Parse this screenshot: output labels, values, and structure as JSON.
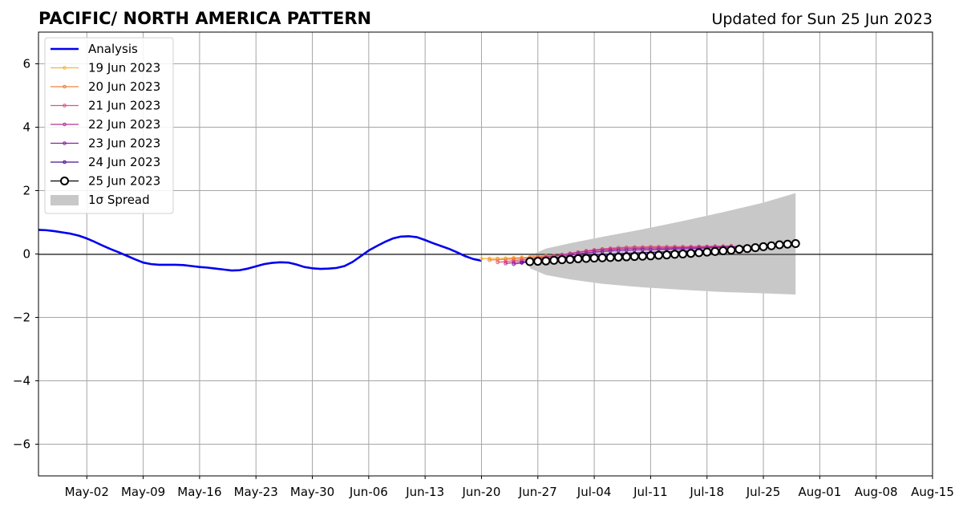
{
  "chart_data": {
    "type": "line",
    "title": "PACIFIC/ NORTH AMERICA PATTERN",
    "subtitle": "Updated for Sun 25 Jun 2023",
    "xlabel": "",
    "ylabel": "",
    "xlim": [
      "2023-04-26",
      "2023-08-15"
    ],
    "ylim": [
      -7,
      7
    ],
    "x_ticks": [
      "2023-05-02",
      "2023-05-09",
      "2023-05-16",
      "2023-05-23",
      "2023-05-30",
      "2023-06-06",
      "2023-06-13",
      "2023-06-20",
      "2023-06-27",
      "2023-07-04",
      "2023-07-11",
      "2023-07-18",
      "2023-07-25",
      "2023-08-01",
      "2023-08-08",
      "2023-08-15"
    ],
    "x_tick_labels": [
      "May-02",
      "May-09",
      "May-16",
      "May-23",
      "May-30",
      "Jun-06",
      "Jun-13",
      "Jun-20",
      "Jun-27",
      "Jul-04",
      "Jul-11",
      "Jul-18",
      "Jul-25",
      "Aug-01",
      "Aug-08",
      "Aug-15"
    ],
    "y_ticks": [
      -6,
      -4,
      -2,
      0,
      2,
      4,
      6
    ],
    "y_tick_labels": [
      "−6",
      "−4",
      "−2",
      "0",
      "2",
      "4",
      "6"
    ],
    "grid": true,
    "legend_position": "top-left",
    "series": [
      {
        "name": "Analysis",
        "color": "#0000ee",
        "style": "thick-line",
        "points": [
          [
            "2023-04-26",
            0.76
          ],
          [
            "2023-04-27",
            0.75
          ],
          [
            "2023-04-28",
            0.72
          ],
          [
            "2023-04-29",
            0.68
          ],
          [
            "2023-04-30",
            0.64
          ],
          [
            "2023-05-01",
            0.58
          ],
          [
            "2023-05-02",
            0.49
          ],
          [
            "2023-05-03",
            0.38
          ],
          [
            "2023-05-04",
            0.26
          ],
          [
            "2023-05-05",
            0.15
          ],
          [
            "2023-05-06",
            0.05
          ],
          [
            "2023-05-07",
            -0.06
          ],
          [
            "2023-05-08",
            -0.17
          ],
          [
            "2023-05-09",
            -0.27
          ],
          [
            "2023-05-10",
            -0.32
          ],
          [
            "2023-05-11",
            -0.34
          ],
          [
            "2023-05-12",
            -0.34
          ],
          [
            "2023-05-13",
            -0.34
          ],
          [
            "2023-05-14",
            -0.35
          ],
          [
            "2023-05-15",
            -0.38
          ],
          [
            "2023-05-16",
            -0.41
          ],
          [
            "2023-05-17",
            -0.43
          ],
          [
            "2023-05-18",
            -0.46
          ],
          [
            "2023-05-19",
            -0.49
          ],
          [
            "2023-05-20",
            -0.52
          ],
          [
            "2023-05-21",
            -0.51
          ],
          [
            "2023-05-22",
            -0.46
          ],
          [
            "2023-05-23",
            -0.39
          ],
          [
            "2023-05-24",
            -0.32
          ],
          [
            "2023-05-25",
            -0.28
          ],
          [
            "2023-05-26",
            -0.26
          ],
          [
            "2023-05-27",
            -0.27
          ],
          [
            "2023-05-28",
            -0.33
          ],
          [
            "2023-05-29",
            -0.41
          ],
          [
            "2023-05-30",
            -0.45
          ],
          [
            "2023-05-31",
            -0.47
          ],
          [
            "2023-06-01",
            -0.46
          ],
          [
            "2023-06-02",
            -0.44
          ],
          [
            "2023-06-03",
            -0.38
          ],
          [
            "2023-06-04",
            -0.25
          ],
          [
            "2023-06-05",
            -0.07
          ],
          [
            "2023-06-06",
            0.11
          ],
          [
            "2023-06-07",
            0.25
          ],
          [
            "2023-06-08",
            0.38
          ],
          [
            "2023-06-09",
            0.49
          ],
          [
            "2023-06-10",
            0.55
          ],
          [
            "2023-06-11",
            0.56
          ],
          [
            "2023-06-12",
            0.53
          ],
          [
            "2023-06-13",
            0.44
          ],
          [
            "2023-06-14",
            0.34
          ],
          [
            "2023-06-15",
            0.25
          ],
          [
            "2023-06-16",
            0.16
          ],
          [
            "2023-06-17",
            0.05
          ],
          [
            "2023-06-18",
            -0.07
          ],
          [
            "2023-06-19",
            -0.16
          ],
          [
            "2023-06-20",
            -0.21
          ]
        ]
      },
      {
        "name": "19 Jun 2023",
        "color": "#f7b43a",
        "style": "small-markers",
        "points": [
          [
            "2023-06-20",
            -0.15
          ],
          [
            "2023-06-21",
            -0.14
          ],
          [
            "2023-06-22",
            -0.14
          ],
          [
            "2023-06-23",
            -0.13
          ],
          [
            "2023-06-24",
            -0.12
          ],
          [
            "2023-06-25",
            -0.11
          ],
          [
            "2023-06-26",
            -0.1
          ],
          [
            "2023-06-27",
            -0.08
          ],
          [
            "2023-06-28",
            -0.06
          ]
        ]
      },
      {
        "name": "20 Jun 2023",
        "color": "#f0803c",
        "style": "small-markers",
        "points": [
          [
            "2023-06-21",
            -0.19
          ],
          [
            "2023-06-22",
            -0.18
          ],
          [
            "2023-06-23",
            -0.17
          ],
          [
            "2023-06-24",
            -0.15
          ],
          [
            "2023-06-25",
            -0.13
          ],
          [
            "2023-06-26",
            -0.11
          ],
          [
            "2023-06-27",
            -0.09
          ],
          [
            "2023-06-28",
            -0.07
          ],
          [
            "2023-06-29",
            -0.05
          ],
          [
            "2023-06-30",
            -0.03
          ]
        ]
      },
      {
        "name": "21 Jun 2023",
        "color": "#e05577",
        "style": "small-markers",
        "points": [
          [
            "2023-06-22",
            -0.26
          ],
          [
            "2023-06-23",
            -0.24
          ],
          [
            "2023-06-24",
            -0.21
          ],
          [
            "2023-06-25",
            -0.18
          ],
          [
            "2023-06-26",
            -0.15
          ],
          [
            "2023-06-27",
            -0.12
          ],
          [
            "2023-06-28",
            -0.09
          ],
          [
            "2023-06-29",
            -0.06
          ],
          [
            "2023-06-30",
            -0.02
          ],
          [
            "2023-07-01",
            0.02
          ],
          [
            "2023-07-02",
            0.06
          ],
          [
            "2023-07-03",
            0.1
          ],
          [
            "2023-07-04",
            0.13
          ],
          [
            "2023-07-05",
            0.16
          ],
          [
            "2023-07-06",
            0.18
          ],
          [
            "2023-07-07",
            0.2
          ],
          [
            "2023-07-08",
            0.21
          ],
          [
            "2023-07-09",
            0.22
          ],
          [
            "2023-07-10",
            0.22
          ],
          [
            "2023-07-11",
            0.23
          ],
          [
            "2023-07-12",
            0.23
          ],
          [
            "2023-07-13",
            0.23
          ],
          [
            "2023-07-14",
            0.23
          ],
          [
            "2023-07-15",
            0.23
          ],
          [
            "2023-07-16",
            0.23
          ],
          [
            "2023-07-17",
            0.24
          ],
          [
            "2023-07-18",
            0.24
          ],
          [
            "2023-07-19",
            0.25
          ],
          [
            "2023-07-20",
            0.25
          ],
          [
            "2023-07-21",
            0.26
          ]
        ]
      },
      {
        "name": "22 Jun 2023",
        "color": "#b7348d",
        "style": "small-markers",
        "points": [
          [
            "2023-06-23",
            -0.3
          ],
          [
            "2023-06-24",
            -0.27
          ],
          [
            "2023-06-25",
            -0.23
          ],
          [
            "2023-06-26",
            -0.19
          ],
          [
            "2023-06-27",
            -0.15
          ],
          [
            "2023-06-28",
            -0.11
          ],
          [
            "2023-06-29",
            -0.07
          ],
          [
            "2023-06-30",
            -0.03
          ],
          [
            "2023-07-01",
            0.01
          ],
          [
            "2023-07-02",
            0.05
          ],
          [
            "2023-07-03",
            0.08
          ],
          [
            "2023-07-04",
            0.11
          ],
          [
            "2023-07-05",
            0.13
          ],
          [
            "2023-07-06",
            0.15
          ],
          [
            "2023-07-07",
            0.16
          ],
          [
            "2023-07-08",
            0.17
          ],
          [
            "2023-07-09",
            0.18
          ],
          [
            "2023-07-10",
            0.18
          ],
          [
            "2023-07-11",
            0.19
          ],
          [
            "2023-07-12",
            0.19
          ],
          [
            "2023-07-13",
            0.19
          ],
          [
            "2023-07-14",
            0.2
          ],
          [
            "2023-07-15",
            0.2
          ],
          [
            "2023-07-16",
            0.21
          ],
          [
            "2023-07-17",
            0.21
          ],
          [
            "2023-07-18",
            0.22
          ],
          [
            "2023-07-19",
            0.22
          ],
          [
            "2023-07-20",
            0.23
          ],
          [
            "2023-07-21",
            0.23
          ],
          [
            "2023-07-22",
            0.24
          ]
        ]
      },
      {
        "name": "23 Jun 2023",
        "color": "#8b1fa6",
        "style": "small-markers",
        "points": [
          [
            "2023-06-24",
            -0.32
          ],
          [
            "2023-06-25",
            -0.28
          ],
          [
            "2023-06-26",
            -0.24
          ],
          [
            "2023-06-27",
            -0.2
          ],
          [
            "2023-06-28",
            -0.16
          ],
          [
            "2023-06-29",
            -0.12
          ],
          [
            "2023-06-30",
            -0.08
          ],
          [
            "2023-07-01",
            -0.04
          ],
          [
            "2023-07-02",
            0.0
          ],
          [
            "2023-07-03",
            0.03
          ],
          [
            "2023-07-04",
            0.06
          ],
          [
            "2023-07-05",
            0.08
          ],
          [
            "2023-07-06",
            0.1
          ],
          [
            "2023-07-07",
            0.11
          ],
          [
            "2023-07-08",
            0.12
          ],
          [
            "2023-07-09",
            0.13
          ],
          [
            "2023-07-10",
            0.14
          ],
          [
            "2023-07-11",
            0.14
          ],
          [
            "2023-07-12",
            0.15
          ],
          [
            "2023-07-13",
            0.15
          ],
          [
            "2023-07-14",
            0.16
          ],
          [
            "2023-07-15",
            0.16
          ],
          [
            "2023-07-16",
            0.17
          ],
          [
            "2023-07-17",
            0.18
          ],
          [
            "2023-07-18",
            0.19
          ],
          [
            "2023-07-19",
            0.2
          ],
          [
            "2023-07-20",
            0.21
          ],
          [
            "2023-07-21",
            0.22
          ],
          [
            "2023-07-22",
            0.23
          ],
          [
            "2023-07-23",
            0.24
          ]
        ]
      },
      {
        "name": "24 Jun 2023",
        "color": "#4b108f",
        "style": "small-markers",
        "points": [
          [
            "2023-06-25",
            -0.27
          ],
          [
            "2023-06-26",
            -0.24
          ],
          [
            "2023-06-27",
            -0.21
          ],
          [
            "2023-06-28",
            -0.18
          ],
          [
            "2023-06-29",
            -0.15
          ],
          [
            "2023-06-30",
            -0.12
          ],
          [
            "2023-07-01",
            -0.09
          ],
          [
            "2023-07-02",
            -0.07
          ],
          [
            "2023-07-03",
            -0.05
          ],
          [
            "2023-07-04",
            -0.03
          ],
          [
            "2023-07-05",
            -0.01
          ],
          [
            "2023-07-06",
            0.0
          ],
          [
            "2023-07-07",
            0.01
          ],
          [
            "2023-07-08",
            0.02
          ],
          [
            "2023-07-09",
            0.03
          ],
          [
            "2023-07-10",
            0.04
          ],
          [
            "2023-07-11",
            0.05
          ],
          [
            "2023-07-12",
            0.06
          ],
          [
            "2023-07-13",
            0.07
          ],
          [
            "2023-07-14",
            0.08
          ],
          [
            "2023-07-15",
            0.09
          ],
          [
            "2023-07-16",
            0.1
          ],
          [
            "2023-07-17",
            0.11
          ],
          [
            "2023-07-18",
            0.12
          ],
          [
            "2023-07-19",
            0.13
          ],
          [
            "2023-07-20",
            0.14
          ],
          [
            "2023-07-21",
            0.16
          ],
          [
            "2023-07-22",
            0.18
          ],
          [
            "2023-07-23",
            0.2
          ],
          [
            "2023-07-24",
            0.22
          ]
        ]
      },
      {
        "name": "25 Jun 2023",
        "color": "#000000",
        "style": "big-open-markers",
        "points": [
          [
            "2023-06-26",
            -0.24
          ],
          [
            "2023-06-27",
            -0.23
          ],
          [
            "2023-06-28",
            -0.22
          ],
          [
            "2023-06-29",
            -0.2
          ],
          [
            "2023-06-30",
            -0.18
          ],
          [
            "2023-07-01",
            -0.17
          ],
          [
            "2023-07-02",
            -0.15
          ],
          [
            "2023-07-03",
            -0.14
          ],
          [
            "2023-07-04",
            -0.13
          ],
          [
            "2023-07-05",
            -0.12
          ],
          [
            "2023-07-06",
            -0.11
          ],
          [
            "2023-07-07",
            -0.1
          ],
          [
            "2023-07-08",
            -0.09
          ],
          [
            "2023-07-09",
            -0.08
          ],
          [
            "2023-07-10",
            -0.07
          ],
          [
            "2023-07-11",
            -0.06
          ],
          [
            "2023-07-12",
            -0.04
          ],
          [
            "2023-07-13",
            -0.03
          ],
          [
            "2023-07-14",
            -0.01
          ],
          [
            "2023-07-15",
            0.0
          ],
          [
            "2023-07-16",
            0.02
          ],
          [
            "2023-07-17",
            0.04
          ],
          [
            "2023-07-18",
            0.06
          ],
          [
            "2023-07-19",
            0.08
          ],
          [
            "2023-07-20",
            0.1
          ],
          [
            "2023-07-21",
            0.12
          ],
          [
            "2023-07-22",
            0.15
          ],
          [
            "2023-07-23",
            0.17
          ],
          [
            "2023-07-24",
            0.2
          ],
          [
            "2023-07-25",
            0.23
          ],
          [
            "2023-07-26",
            0.26
          ],
          [
            "2023-07-27",
            0.29
          ],
          [
            "2023-07-28",
            0.31
          ],
          [
            "2023-07-29",
            0.33
          ]
        ]
      }
    ],
    "spread": {
      "name": "1σ Spread",
      "color": "#c8c8c8",
      "upper": [
        [
          "2023-06-26",
          -0.05
        ],
        [
          "2023-06-28",
          0.17
        ],
        [
          "2023-07-01",
          0.34
        ],
        [
          "2023-07-05",
          0.54
        ],
        [
          "2023-07-10",
          0.78
        ],
        [
          "2023-07-15",
          1.04
        ],
        [
          "2023-07-20",
          1.32
        ],
        [
          "2023-07-25",
          1.62
        ],
        [
          "2023-07-29",
          1.92
        ]
      ],
      "lower": [
        [
          "2023-06-26",
          -0.45
        ],
        [
          "2023-06-28",
          -0.66
        ],
        [
          "2023-07-01",
          -0.8
        ],
        [
          "2023-07-05",
          -0.94
        ],
        [
          "2023-07-10",
          -1.05
        ],
        [
          "2023-07-15",
          -1.13
        ],
        [
          "2023-07-20",
          -1.2
        ],
        [
          "2023-07-25",
          -1.24
        ],
        [
          "2023-07-29",
          -1.28
        ]
      ]
    }
  }
}
